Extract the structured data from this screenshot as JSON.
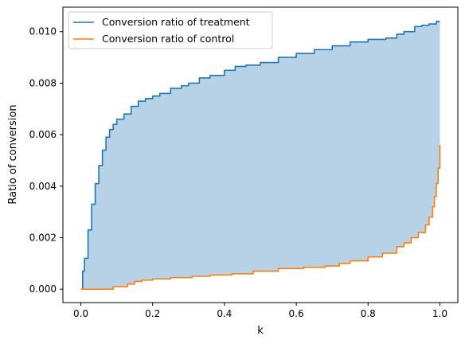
{
  "chart_data": {
    "type": "line",
    "title": "",
    "xlabel": "k",
    "ylabel": "Ratio of conversion",
    "xlim": [
      -0.05,
      1.05
    ],
    "ylim": [
      -0.00052,
      0.01095
    ],
    "x_ticks": [
      0.0,
      0.2,
      0.4,
      0.6,
      0.8,
      1.0
    ],
    "x_tick_labels": [
      "0.0",
      "0.2",
      "0.4",
      "0.6",
      "0.8",
      "1.0"
    ],
    "y_ticks": [
      0.0,
      0.002,
      0.004,
      0.006,
      0.008,
      0.01
    ],
    "y_tick_labels": [
      "0.000",
      "0.002",
      "0.004",
      "0.006",
      "0.008",
      "0.010"
    ],
    "grid": false,
    "legend": {
      "placement": "top-left"
    },
    "fill_between_series": true,
    "fill_color": "#b7d2e6",
    "series": [
      {
        "name": "Conversion ratio of treatment",
        "color": "#1f77b4",
        "x": [
          0.0,
          0.005,
          0.01,
          0.02,
          0.03,
          0.04,
          0.05,
          0.06,
          0.07,
          0.08,
          0.09,
          0.1,
          0.12,
          0.14,
          0.16,
          0.18,
          0.2,
          0.22,
          0.25,
          0.28,
          0.3,
          0.33,
          0.36,
          0.4,
          0.43,
          0.46,
          0.5,
          0.55,
          0.6,
          0.65,
          0.7,
          0.75,
          0.8,
          0.85,
          0.88,
          0.9,
          0.93,
          0.95,
          0.97,
          0.99,
          1.0
        ],
        "y": [
          0.0,
          0.0007,
          0.0012,
          0.0023,
          0.0033,
          0.0041,
          0.0048,
          0.0054,
          0.0059,
          0.0062,
          0.0064,
          0.0066,
          0.0068,
          0.0071,
          0.0073,
          0.0074,
          0.0075,
          0.0076,
          0.0078,
          0.0079,
          0.008,
          0.0082,
          0.0083,
          0.0085,
          0.00865,
          0.0087,
          0.0088,
          0.009,
          0.00915,
          0.0093,
          0.00945,
          0.0096,
          0.0097,
          0.00975,
          0.0099,
          0.01,
          0.0102,
          0.01025,
          0.0103,
          0.0104,
          0.0104
        ]
      },
      {
        "name": "Conversion ratio of control",
        "color": "#ff7f0e",
        "x": [
          0.0,
          0.05,
          0.09,
          0.13,
          0.15,
          0.17,
          0.2,
          0.25,
          0.31,
          0.36,
          0.42,
          0.48,
          0.55,
          0.62,
          0.68,
          0.72,
          0.75,
          0.8,
          0.84,
          0.88,
          0.9,
          0.92,
          0.94,
          0.96,
          0.97,
          0.98,
          0.985,
          0.99,
          0.995,
          1.0
        ],
        "y": [
          0.0,
          0.0,
          0.0001,
          0.0002,
          0.0003,
          0.00035,
          0.0004,
          0.00045,
          0.0005,
          0.00055,
          0.0006,
          0.0007,
          0.0008,
          0.00085,
          0.0009,
          0.001,
          0.0011,
          0.00125,
          0.0014,
          0.00165,
          0.0018,
          0.002,
          0.0022,
          0.0025,
          0.0028,
          0.0032,
          0.0036,
          0.0041,
          0.0047,
          0.0056
        ]
      }
    ]
  }
}
